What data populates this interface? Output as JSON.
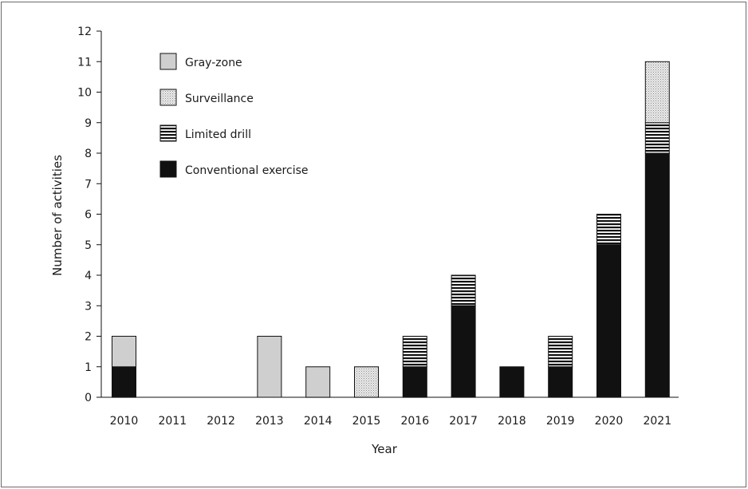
{
  "chart_data": {
    "type": "bar",
    "stacked": true,
    "categories": [
      "2010",
      "2011",
      "2012",
      "2013",
      "2014",
      "2015",
      "2016",
      "2017",
      "2018",
      "2019",
      "2020",
      "2021"
    ],
    "series": [
      {
        "name": "Conventional exercise",
        "values": [
          1,
          0,
          0,
          0,
          0,
          0,
          1,
          3,
          1,
          1,
          5,
          8
        ],
        "color": "#111111",
        "pattern": "solid"
      },
      {
        "name": "Limited drill",
        "values": [
          0,
          0,
          0,
          0,
          0,
          0,
          1,
          1,
          0,
          1,
          1,
          1
        ],
        "color": "#111111",
        "pattern": "horizontal-stripes"
      },
      {
        "name": "Surveillance",
        "values": [
          0,
          0,
          0,
          0,
          0,
          1,
          0,
          0,
          0,
          0,
          0,
          2
        ],
        "color": "#e4e4e4",
        "pattern": "dotted"
      },
      {
        "name": "Gray-zone",
        "values": [
          1,
          0,
          0,
          2,
          1,
          0,
          0,
          0,
          0,
          0,
          0,
          0
        ],
        "color": "#cfcfcf",
        "pattern": "solid"
      }
    ],
    "legend_order": [
      "Gray-zone",
      "Surveillance",
      "Limited drill",
      "Conventional exercise"
    ],
    "legend_position": "top-left",
    "title": "",
    "xlabel": "Year",
    "ylabel": "Number of activities",
    "ylim": [
      0,
      12
    ],
    "yticks": [
      0,
      1,
      2,
      3,
      4,
      5,
      6,
      7,
      8,
      9,
      10,
      11,
      12
    ],
    "grid": false
  }
}
